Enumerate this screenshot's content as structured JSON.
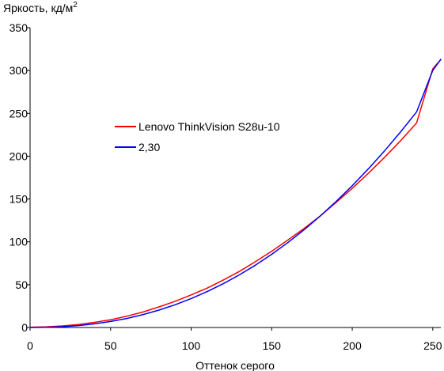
{
  "chart_data": {
    "type": "line",
    "ylabel": "Яркость, кд/м",
    "ylabel_superscript": "2",
    "xlabel": "Оттенок серого",
    "xlim": [
      0,
      255
    ],
    "ylim": [
      0,
      350
    ],
    "xticks": [
      0,
      50,
      100,
      150,
      200,
      250
    ],
    "yticks": [
      0,
      50,
      100,
      150,
      200,
      250,
      300,
      350
    ],
    "grid": false,
    "legend_position": "center-left",
    "series": [
      {
        "name": "Lenovo ThinkVision S28u-10",
        "color": "#ff0000",
        "x": [
          0,
          10,
          20,
          30,
          40,
          50,
          60,
          70,
          80,
          90,
          100,
          110,
          120,
          130,
          140,
          150,
          160,
          170,
          180,
          190,
          200,
          210,
          220,
          230,
          240,
          250,
          255
        ],
        "y": [
          0.4,
          0.8,
          1.8,
          3.5,
          6.0,
          9.0,
          13.2,
          18.0,
          24.0,
          30.5,
          38.0,
          46.0,
          55.5,
          65.5,
          77.0,
          89.0,
          102.0,
          115.5,
          130.0,
          146.0,
          162.5,
          180.0,
          198.5,
          218.0,
          239.0,
          302.0,
          313.0
        ]
      },
      {
        "name": "2,30",
        "color": "#0000ff",
        "gamma": 2.3,
        "x": [
          0,
          10,
          20,
          30,
          40,
          50,
          60,
          70,
          80,
          90,
          100,
          110,
          120,
          130,
          140,
          150,
          160,
          170,
          180,
          190,
          200,
          210,
          220,
          230,
          240,
          250,
          255
        ],
        "y": [
          0.0,
          0.2,
          0.9,
          2.2,
          4.3,
          7.0,
          10.5,
          15.0,
          20.3,
          26.5,
          33.8,
          42.0,
          51.2,
          61.5,
          72.9,
          85.4,
          99.1,
          113.9,
          129.9,
          147.1,
          165.5,
          185.2,
          206.1,
          228.3,
          251.8,
          300.2,
          313.0
        ]
      }
    ]
  }
}
